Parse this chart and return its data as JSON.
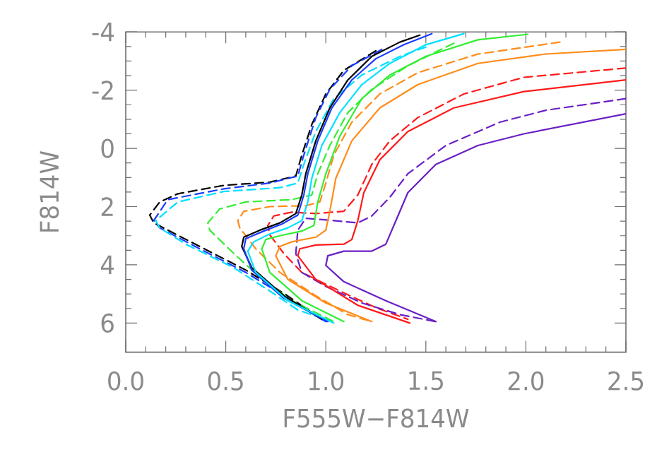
{
  "chart_data": {
    "type": "line",
    "xlabel": "F555W−F814W",
    "ylabel": "F814W",
    "xlim": [
      0,
      2.5
    ],
    "ylim": [
      7,
      -4
    ],
    "xticks": [
      {
        "value": 0,
        "label": "0.0"
      },
      {
        "value": 0.5,
        "label": "0.5"
      },
      {
        "value": 1,
        "label": "1.0"
      },
      {
        "value": 1.5,
        "label": "1.5"
      },
      {
        "value": 2,
        "label": "2.0"
      },
      {
        "value": 2.5,
        "label": "2.5"
      }
    ],
    "yticks": [
      -4,
      -2,
      0,
      2,
      4,
      6
    ],
    "marker": "none",
    "series": [
      {
        "color": "#000000",
        "line_style": "dashed",
        "x": [
          1.25,
          1.09,
          1.0,
          0.93,
          0.88,
          0.85,
          0.72,
          0.49,
          0.26,
          0.17,
          0.12,
          0.14,
          0.37,
          0.6,
          0.79,
          0.98
        ],
        "values": [
          -3.35,
          -2.68,
          -1.87,
          -0.82,
          0.23,
          0.95,
          1.16,
          1.27,
          1.56,
          1.84,
          2.29,
          2.56,
          3.37,
          4.18,
          4.98,
          5.87
        ]
      },
      {
        "color": "#1a3cff",
        "line_style": "dashed",
        "x": [
          1.28,
          1.13,
          1.02,
          0.95,
          0.89,
          0.86,
          0.72,
          0.49,
          0.21,
          0.14,
          0.17,
          0.37,
          0.6,
          0.79,
          1.0
        ],
        "values": [
          -3.4,
          -2.84,
          -2.03,
          -1.06,
          0.23,
          0.95,
          1.19,
          1.39,
          1.76,
          2.48,
          2.73,
          3.45,
          4.26,
          5.06,
          5.95
        ]
      },
      {
        "color": "#00e0ff",
        "line_style": "dashed",
        "x": [
          1.5,
          1.37,
          1.18,
          1.04,
          0.95,
          0.89,
          0.86,
          0.77,
          0.49,
          0.26,
          0.15,
          0.17,
          0.3,
          0.54,
          0.72,
          0.86,
          1.03
        ],
        "values": [
          -3.48,
          -3.16,
          -2.52,
          -1.71,
          -0.58,
          0.55,
          1.19,
          1.35,
          1.48,
          1.84,
          2.48,
          2.73,
          3.29,
          4.1,
          4.9,
          5.55,
          5.95
        ]
      },
      {
        "color": "#33ee33",
        "line_style": "dashed",
        "x": [
          1.64,
          1.41,
          1.23,
          1.11,
          1.02,
          0.96,
          0.93,
          0.83,
          0.6,
          0.47,
          0.41,
          0.42,
          0.54,
          0.67,
          0.83,
          1.04
        ],
        "values": [
          -3.61,
          -2.84,
          -2.03,
          -1.23,
          -0.1,
          0.87,
          1.6,
          1.76,
          1.84,
          2.08,
          2.56,
          2.81,
          3.61,
          4.42,
          5.23,
          5.95
        ]
      },
      {
        "color": "#ff8c1a",
        "line_style": "dashed",
        "x": [
          2.17,
          1.76,
          1.46,
          1.27,
          1.13,
          1.04,
          1.0,
          0.97,
          0.9,
          0.72,
          0.59,
          0.56,
          0.57,
          0.65,
          0.77,
          0.95,
          1.11,
          1.23
        ],
        "values": [
          -3.65,
          -3.24,
          -2.6,
          -1.87,
          -0.9,
          0.23,
          1.19,
          1.84,
          1.97,
          2.0,
          2.16,
          2.48,
          2.73,
          3.45,
          4.26,
          5.06,
          5.71,
          5.95
        ]
      },
      {
        "color": "#ff1a1a",
        "line_style": "dashed",
        "x": [
          2.5,
          1.99,
          1.69,
          1.46,
          1.32,
          1.23,
          1.16,
          1.09,
          0.95,
          0.83,
          0.74,
          0.71,
          0.72,
          0.79,
          0.88,
          1.07,
          1.25,
          1.41
        ],
        "values": [
          -2.76,
          -2.44,
          -1.87,
          -1.06,
          -0.26,
          0.55,
          1.6,
          2.16,
          2.24,
          2.19,
          2.32,
          2.65,
          2.97,
          3.61,
          4.26,
          4.9,
          5.47,
          5.87
        ]
      },
      {
        "color": "#6a1fc4",
        "line_style": "dashed",
        "x": [
          2.5,
          2.1,
          1.87,
          1.6,
          1.41,
          1.32,
          1.23,
          1.16,
          1.04,
          0.9,
          0.86,
          0.85,
          0.88,
          1.0,
          1.18,
          1.37,
          1.55
        ],
        "values": [
          -1.71,
          -1.31,
          -0.9,
          -0.1,
          0.87,
          1.68,
          2.32,
          2.56,
          2.48,
          2.4,
          2.81,
          3.61,
          4.26,
          4.74,
          5.31,
          5.71,
          5.95
        ]
      },
      {
        "color": "#000000",
        "line_style": "solid",
        "x": [
          0.98,
          0.79,
          0.63,
          0.58,
          0.59,
          0.67,
          0.77,
          0.85,
          0.88,
          0.9,
          0.95,
          1.02,
          1.11,
          1.23,
          1.37,
          1.47
        ],
        "values": [
          5.87,
          5.06,
          4.1,
          3.37,
          3.05,
          2.81,
          2.56,
          2.24,
          1.6,
          0.87,
          -0.26,
          -1.39,
          -2.35,
          -3.16,
          -3.65,
          -3.89
        ]
      },
      {
        "color": "#1a3cff",
        "line_style": "solid",
        "x": [
          1.01,
          0.79,
          0.63,
          0.59,
          0.6,
          0.69,
          0.78,
          0.86,
          0.89,
          0.91,
          0.96,
          1.03,
          1.13,
          1.25,
          1.39,
          1.53
        ],
        "values": [
          5.95,
          5.15,
          4.18,
          3.45,
          3.1,
          2.84,
          2.6,
          2.29,
          1.6,
          0.87,
          -0.26,
          -1.39,
          -2.35,
          -3.08,
          -3.56,
          -3.94
        ]
      },
      {
        "color": "#00e0ff",
        "line_style": "solid",
        "x": [
          1.04,
          0.81,
          0.65,
          0.61,
          0.64,
          0.72,
          0.81,
          0.88,
          0.91,
          0.93,
          0.98,
          1.07,
          1.18,
          1.32,
          1.5,
          1.69
        ],
        "values": [
          6.0,
          5.23,
          4.26,
          3.53,
          3.21,
          2.94,
          2.73,
          2.48,
          1.84,
          1.03,
          -0.1,
          -1.23,
          -2.19,
          -2.92,
          -3.56,
          -3.94
        ]
      },
      {
        "color": "#33ee33",
        "line_style": "solid",
        "x": [
          1.09,
          0.88,
          0.72,
          0.68,
          0.7,
          0.77,
          0.88,
          0.94,
          0.96,
          1.0,
          1.07,
          1.18,
          1.32,
          1.5,
          1.76,
          2.01
        ],
        "values": [
          5.95,
          5.23,
          4.26,
          3.45,
          3.13,
          3.0,
          2.84,
          2.65,
          1.84,
          0.87,
          -0.42,
          -1.71,
          -2.52,
          -3.16,
          -3.73,
          -3.92
        ]
      },
      {
        "color": "#ff8c1a",
        "line_style": "solid",
        "x": [
          1.23,
          1.0,
          0.81,
          0.75,
          0.77,
          0.83,
          0.95,
          1.0,
          1.02,
          1.05,
          1.13,
          1.27,
          1.46,
          1.76,
          2.1,
          2.5
        ],
        "values": [
          5.95,
          5.31,
          4.5,
          3.69,
          3.37,
          3.21,
          3.05,
          2.81,
          2.16,
          1.03,
          -0.26,
          -1.39,
          -2.19,
          -2.92,
          -3.24,
          -3.4
        ]
      },
      {
        "color": "#ff1a1a",
        "line_style": "solid",
        "x": [
          1.42,
          1.16,
          0.95,
          0.86,
          0.87,
          0.95,
          1.09,
          1.13,
          1.16,
          1.19,
          1.27,
          1.41,
          1.64,
          1.99,
          2.5
        ],
        "values": [
          6.0,
          5.39,
          4.5,
          3.69,
          3.45,
          3.32,
          3.29,
          3.13,
          2.48,
          1.52,
          0.39,
          -0.58,
          -1.39,
          -1.95,
          -2.35
        ]
      },
      {
        "color": "#6a1fc4",
        "line_style": "solid",
        "x": [
          1.55,
          1.3,
          1.09,
          1.0,
          1.01,
          1.09,
          1.23,
          1.3,
          1.34,
          1.41,
          1.55,
          1.76,
          1.99,
          2.5
        ],
        "values": [
          5.95,
          5.23,
          4.58,
          4.02,
          3.69,
          3.53,
          3.53,
          3.29,
          2.65,
          1.52,
          0.55,
          -0.1,
          -0.5,
          -1.19
        ]
      }
    ]
  }
}
